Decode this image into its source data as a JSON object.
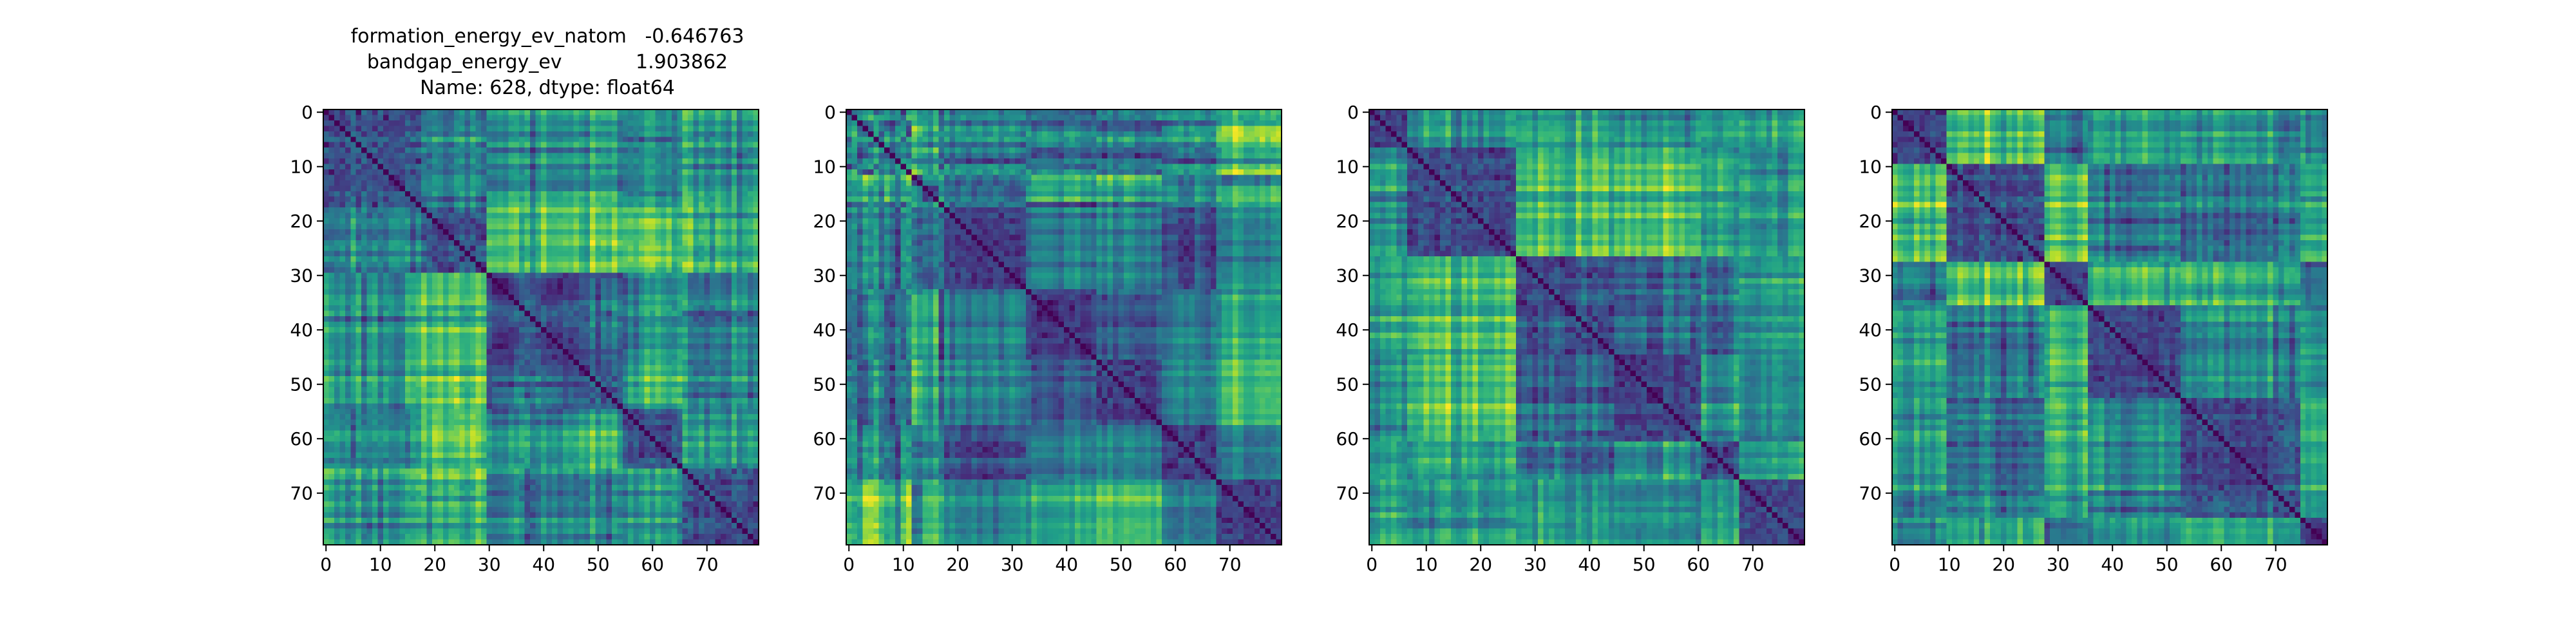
{
  "title": {
    "line1": "formation_energy_ev_natom   -0.646763",
    "line2": "bandgap_energy_ev            1.903862",
    "line3": "Name: 628, dtype: float64"
  },
  "chart_data": [
    {
      "type": "heatmap",
      "title": "formation_energy_ev_natom   -0.646763\nbandgap_energy_ev            1.903862\nName: 628, dtype: float64",
      "colormap": "viridis",
      "n": 80,
      "xlim": [
        0,
        80
      ],
      "ylim": [
        0,
        80
      ],
      "xticks": [
        0,
        10,
        20,
        30,
        40,
        50,
        60,
        70
      ],
      "yticks": [
        0,
        10,
        20,
        30,
        40,
        50,
        60,
        70
      ],
      "diagonal_zero": true,
      "block_boundaries": [
        18,
        30,
        48,
        55,
        66
      ]
    },
    {
      "type": "heatmap",
      "colormap": "viridis",
      "n": 80,
      "xlim": [
        0,
        80
      ],
      "ylim": [
        0,
        80
      ],
      "xticks": [
        0,
        10,
        20,
        30,
        40,
        50,
        60,
        70
      ],
      "yticks": [
        0,
        10,
        20,
        30,
        40,
        50,
        60,
        70
      ],
      "diagonal_zero": true,
      "block_boundaries": [
        12,
        33,
        46,
        58,
        68
      ]
    },
    {
      "type": "heatmap",
      "colormap": "viridis",
      "n": 80,
      "xlim": [
        0,
        80
      ],
      "ylim": [
        0,
        80
      ],
      "xticks": [
        0,
        10,
        20,
        30,
        40,
        50,
        60,
        70
      ],
      "yticks": [
        0,
        10,
        20,
        30,
        40,
        50,
        60,
        70
      ],
      "diagonal_zero": true,
      "block_boundaries": [
        7,
        27,
        38,
        45,
        61,
        68
      ]
    },
    {
      "type": "heatmap",
      "colormap": "viridis",
      "n": 80,
      "xlim": [
        0,
        80
      ],
      "ylim": [
        0,
        80
      ],
      "xticks": [
        0,
        10,
        20,
        30,
        40,
        50,
        60,
        70
      ],
      "yticks": [
        0,
        10,
        20,
        30,
        40,
        50,
        60,
        70
      ],
      "diagonal_zero": true,
      "block_boundaries": [
        10,
        28,
        36,
        53,
        70,
        75
      ]
    }
  ]
}
